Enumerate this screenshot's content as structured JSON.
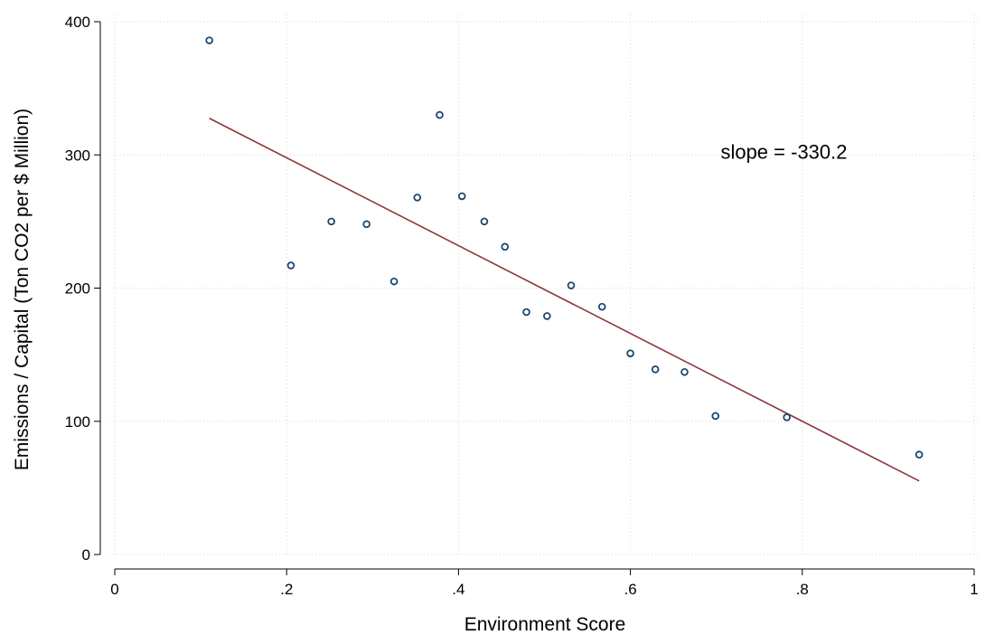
{
  "chart_data": {
    "type": "scatter",
    "xlabel": "Environment Score",
    "ylabel": "Emissions / Capital (Ton CO2 per $ Million)",
    "xlim": [
      0,
      1
    ],
    "ylim": [
      0,
      400
    ],
    "x_ticks": [
      {
        "value": 0,
        "label": "0"
      },
      {
        "value": 0.2,
        "label": ".2"
      },
      {
        "value": 0.4,
        "label": ".4"
      },
      {
        "value": 0.6,
        "label": ".6"
      },
      {
        "value": 0.8,
        "label": ".8"
      },
      {
        "value": 1,
        "label": "1"
      }
    ],
    "y_ticks": [
      {
        "value": 0,
        "label": "0"
      },
      {
        "value": 100,
        "label": "100"
      },
      {
        "value": 200,
        "label": "200"
      },
      {
        "value": 300,
        "label": "300"
      },
      {
        "value": 400,
        "label": "400"
      }
    ],
    "grid": true,
    "points": [
      {
        "x": 0.11,
        "y": 386
      },
      {
        "x": 0.205,
        "y": 217
      },
      {
        "x": 0.252,
        "y": 250
      },
      {
        "x": 0.293,
        "y": 248
      },
      {
        "x": 0.325,
        "y": 205
      },
      {
        "x": 0.352,
        "y": 268
      },
      {
        "x": 0.378,
        "y": 330
      },
      {
        "x": 0.404,
        "y": 269
      },
      {
        "x": 0.43,
        "y": 250
      },
      {
        "x": 0.454,
        "y": 231
      },
      {
        "x": 0.479,
        "y": 182
      },
      {
        "x": 0.503,
        "y": 179
      },
      {
        "x": 0.531,
        "y": 202
      },
      {
        "x": 0.567,
        "y": 186
      },
      {
        "x": 0.6,
        "y": 151
      },
      {
        "x": 0.629,
        "y": 139
      },
      {
        "x": 0.663,
        "y": 137
      },
      {
        "x": 0.699,
        "y": 104
      },
      {
        "x": 0.782,
        "y": 103
      },
      {
        "x": 0.936,
        "y": 75
      }
    ],
    "fit_line": {
      "x": [
        0.11,
        0.936
      ],
      "y": [
        327.5,
        55.2
      ]
    },
    "annotation": {
      "text": "slope =  -330.2",
      "x": 0.705,
      "y": 297
    },
    "colors": {
      "marker": "#1a476f",
      "fit_line": "#90353b",
      "grid": "#d9d9d9",
      "axis": "#000000"
    }
  }
}
